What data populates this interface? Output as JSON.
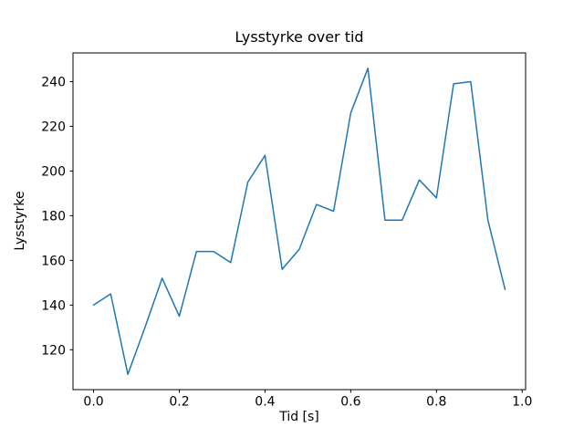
{
  "chart_data": {
    "type": "line",
    "title": "Lysstyrke over tid",
    "xlabel": "Tid [s]",
    "ylabel": "Lysstyrke",
    "line_color": "#1f77b4",
    "line_width": 1.5,
    "grid": false,
    "x": [
      0.0,
      0.04,
      0.08,
      0.12,
      0.16,
      0.2,
      0.24,
      0.28,
      0.32,
      0.36,
      0.4,
      0.44,
      0.48,
      0.52,
      0.56,
      0.6,
      0.64,
      0.68,
      0.72,
      0.76,
      0.8,
      0.84,
      0.88,
      0.92,
      0.96
    ],
    "y": [
      140,
      145,
      109,
      130,
      152,
      135,
      164,
      164,
      159,
      195,
      207,
      156,
      165,
      185,
      182,
      226,
      246,
      178,
      178,
      196,
      188,
      239,
      240,
      178,
      147
    ],
    "xlim": [
      -0.048,
      1.008
    ],
    "ylim": [
      102.15,
      252.85
    ],
    "xticks": {
      "values": [
        0.0,
        0.2,
        0.4,
        0.6,
        0.8,
        1.0
      ],
      "labels": [
        "0.0",
        "0.2",
        "0.4",
        "0.6",
        "0.8",
        "1.0"
      ]
    },
    "yticks": {
      "values": [
        120,
        140,
        160,
        180,
        200,
        220,
        240
      ],
      "labels": [
        "120",
        "140",
        "160",
        "180",
        "200",
        "220",
        "240"
      ]
    }
  }
}
